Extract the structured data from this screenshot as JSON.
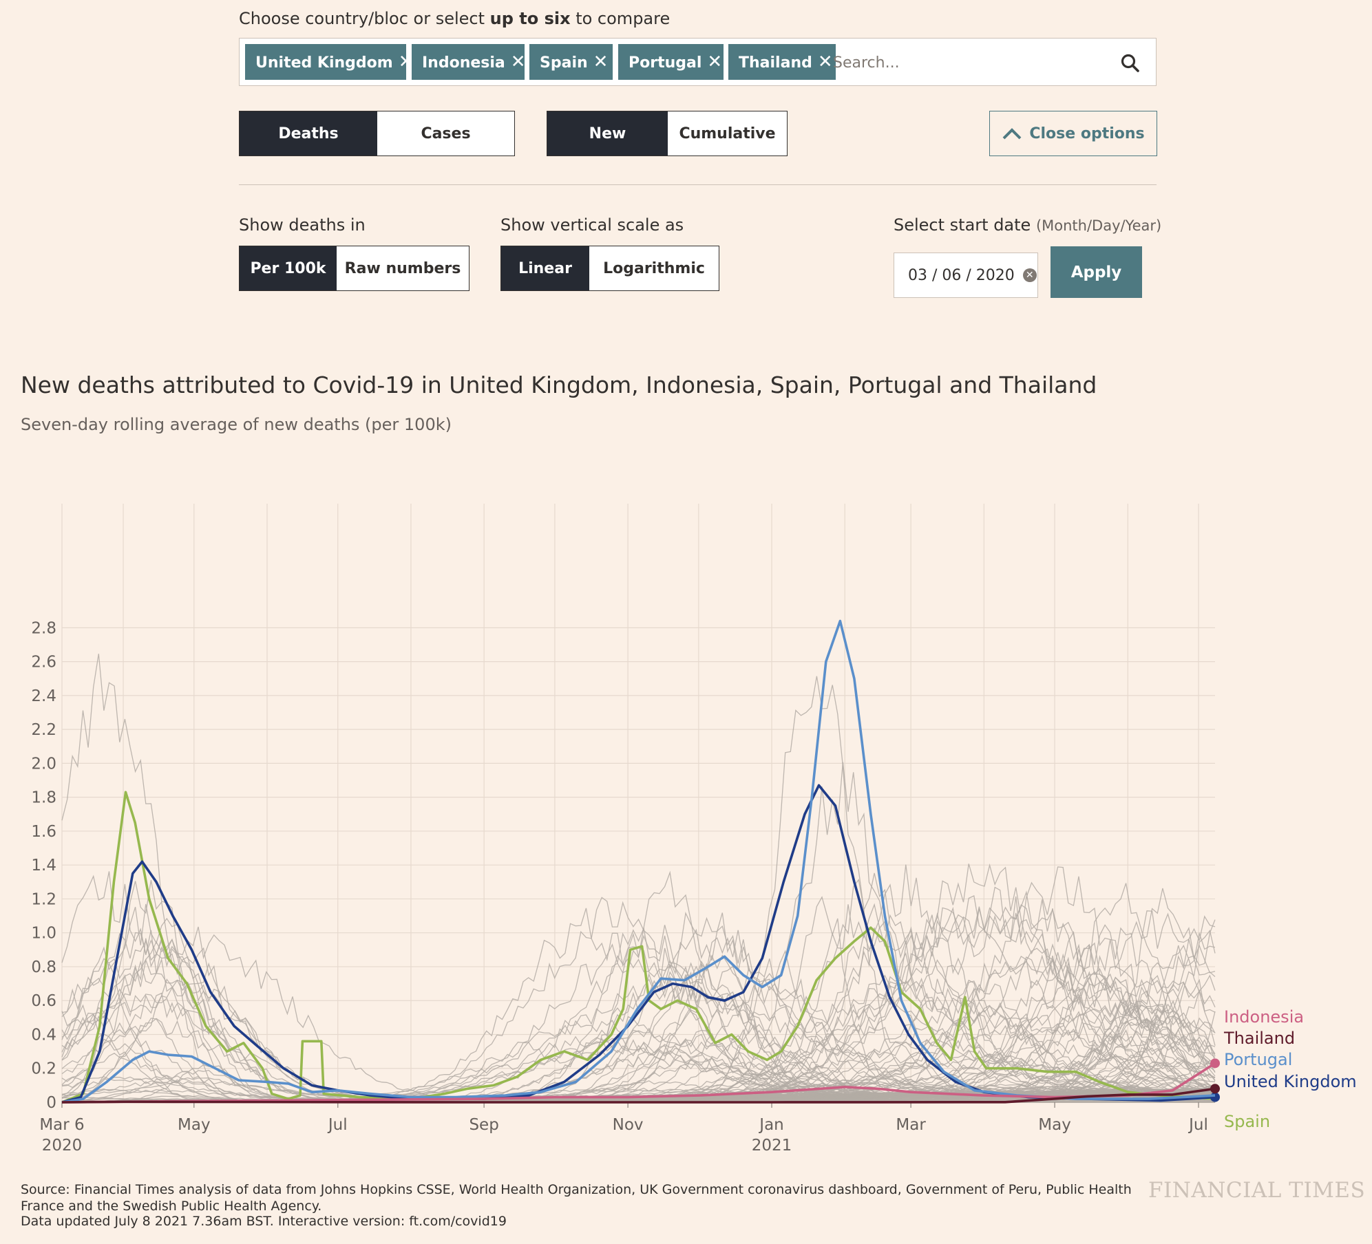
{
  "controls": {
    "prompt_pre": "Choose country/bloc or select ",
    "prompt_bold": "up to six",
    "prompt_post": " to compare",
    "tags": [
      "United Kingdom",
      "Indonesia",
      "Spain",
      "Portugal",
      "Thailand"
    ],
    "tag_remove_glyph": "✕",
    "search_placeholder": "Search...",
    "search_icon": "search-icon",
    "metric": {
      "deaths": "Deaths",
      "cases": "Cases",
      "selected": "Deaths"
    },
    "mode": {
      "new": "New",
      "cumulative": "Cumulative",
      "selected": "New"
    },
    "close_options": "Close options",
    "show_deaths_in": "Show deaths in",
    "per_100k": "Per 100k",
    "raw_numbers": "Raw numbers",
    "show_scale_as": "Show vertical scale as",
    "linear": "Linear",
    "logarithmic": "Logarithmic",
    "select_start_date": "Select start date",
    "date_format": "(Month/Day/Year)",
    "start_date": "03 / 06 / 2020",
    "apply": "Apply"
  },
  "chart_data": {
    "type": "line",
    "title": "New deaths attributed to Covid-19 in United Kingdom, Indonesia, Spain, Portugal and Thailand",
    "subtitle": "Seven-day rolling average of new deaths (per 100k)",
    "ylim": [
      0,
      2.9
    ],
    "yticks": [
      "0",
      "0.2",
      "0.4",
      "0.6",
      "0.8",
      "1.0",
      "1.2",
      "1.4",
      "1.6",
      "1.8",
      "2.0",
      "2.2",
      "2.4",
      "2.6",
      "2.8"
    ],
    "xrange": [
      "2020-03-06",
      "2021-07-08"
    ],
    "xticks": [
      {
        "date": "2020-03-06",
        "label": "Mar 6",
        "year": "2020"
      },
      {
        "date": "2020-05-01",
        "label": "May",
        "year": ""
      },
      {
        "date": "2020-07-01",
        "label": "Jul",
        "year": ""
      },
      {
        "date": "2020-09-01",
        "label": "Sep",
        "year": ""
      },
      {
        "date": "2020-11-01",
        "label": "Nov",
        "year": ""
      },
      {
        "date": "2021-01-01",
        "label": "Jan",
        "year": "2021"
      },
      {
        "date": "2021-03-01",
        "label": "Mar",
        "year": ""
      },
      {
        "date": "2021-05-01",
        "label": "May",
        "year": ""
      },
      {
        "date": "2021-07-01",
        "label": "Jul",
        "year": ""
      }
    ],
    "grid": true,
    "background_series_color": "#b3aba5",
    "series": [
      {
        "name": "Spain",
        "color": "#96b84e",
        "points": [
          [
            "2020-03-06",
            0
          ],
          [
            "2020-03-15",
            0.05
          ],
          [
            "2020-03-22",
            0.45
          ],
          [
            "2020-03-28",
            1.3
          ],
          [
            "2020-04-02",
            1.83
          ],
          [
            "2020-04-06",
            1.65
          ],
          [
            "2020-04-12",
            1.2
          ],
          [
            "2020-04-20",
            0.85
          ],
          [
            "2020-04-28",
            0.7
          ],
          [
            "2020-05-06",
            0.45
          ],
          [
            "2020-05-15",
            0.3
          ],
          [
            "2020-05-22",
            0.35
          ],
          [
            "2020-05-30",
            0.2
          ],
          [
            "2020-06-03",
            0.05
          ],
          [
            "2020-06-10",
            0.02
          ],
          [
            "2020-06-15",
            0.04
          ],
          [
            "2020-06-16",
            0.36
          ],
          [
            "2020-06-24",
            0.36
          ],
          [
            "2020-06-25",
            0.05
          ],
          [
            "2020-07-10",
            0.03
          ],
          [
            "2020-08-01",
            0.02
          ],
          [
            "2020-08-15",
            0.05
          ],
          [
            "2020-08-25",
            0.08
          ],
          [
            "2020-09-05",
            0.1
          ],
          [
            "2020-09-15",
            0.15
          ],
          [
            "2020-09-25",
            0.25
          ],
          [
            "2020-10-05",
            0.3
          ],
          [
            "2020-10-15",
            0.25
          ],
          [
            "2020-10-25",
            0.4
          ],
          [
            "2020-10-30",
            0.55
          ],
          [
            "2020-11-02",
            0.9
          ],
          [
            "2020-11-07",
            0.92
          ],
          [
            "2020-11-10",
            0.6
          ],
          [
            "2020-11-15",
            0.55
          ],
          [
            "2020-11-22",
            0.6
          ],
          [
            "2020-11-30",
            0.55
          ],
          [
            "2020-12-08",
            0.35
          ],
          [
            "2020-12-15",
            0.4
          ],
          [
            "2020-12-22",
            0.3
          ],
          [
            "2020-12-30",
            0.25
          ],
          [
            "2021-01-05",
            0.3
          ],
          [
            "2021-01-12",
            0.45
          ],
          [
            "2021-01-20",
            0.72
          ],
          [
            "2021-01-28",
            0.85
          ],
          [
            "2021-02-05",
            0.95
          ],
          [
            "2021-02-12",
            1.03
          ],
          [
            "2021-02-18",
            0.95
          ],
          [
            "2021-02-25",
            0.65
          ],
          [
            "2021-03-05",
            0.55
          ],
          [
            "2021-03-12",
            0.35
          ],
          [
            "2021-03-18",
            0.25
          ],
          [
            "2021-03-24",
            0.62
          ],
          [
            "2021-03-28",
            0.3
          ],
          [
            "2021-04-02",
            0.2
          ],
          [
            "2021-04-15",
            0.2
          ],
          [
            "2021-04-28",
            0.18
          ],
          [
            "2021-05-10",
            0.18
          ],
          [
            "2021-05-20",
            0.12
          ],
          [
            "2021-06-01",
            0.06
          ],
          [
            "2021-06-15",
            0.04
          ],
          [
            "2021-07-08",
            0.02
          ]
        ]
      },
      {
        "name": "United Kingdom",
        "color": "#1f3c88",
        "points": [
          [
            "2020-03-06",
            0
          ],
          [
            "2020-03-14",
            0.03
          ],
          [
            "2020-03-22",
            0.3
          ],
          [
            "2020-03-30",
            0.9
          ],
          [
            "2020-04-05",
            1.35
          ],
          [
            "2020-04-09",
            1.42
          ],
          [
            "2020-04-15",
            1.3
          ],
          [
            "2020-04-22",
            1.1
          ],
          [
            "2020-04-30",
            0.9
          ],
          [
            "2020-05-08",
            0.65
          ],
          [
            "2020-05-18",
            0.45
          ],
          [
            "2020-05-28",
            0.33
          ],
          [
            "2020-06-08",
            0.2
          ],
          [
            "2020-06-20",
            0.1
          ],
          [
            "2020-07-01",
            0.07
          ],
          [
            "2020-07-15",
            0.04
          ],
          [
            "2020-08-01",
            0.02
          ],
          [
            "2020-09-01",
            0.02
          ],
          [
            "2020-09-20",
            0.04
          ],
          [
            "2020-10-05",
            0.12
          ],
          [
            "2020-10-20",
            0.28
          ],
          [
            "2020-11-01",
            0.45
          ],
          [
            "2020-11-12",
            0.65
          ],
          [
            "2020-11-20",
            0.7
          ],
          [
            "2020-11-28",
            0.68
          ],
          [
            "2020-12-05",
            0.62
          ],
          [
            "2020-12-12",
            0.6
          ],
          [
            "2020-12-20",
            0.65
          ],
          [
            "2020-12-28",
            0.85
          ],
          [
            "2021-01-06",
            1.3
          ],
          [
            "2021-01-15",
            1.7
          ],
          [
            "2021-01-21",
            1.87
          ],
          [
            "2021-01-28",
            1.75
          ],
          [
            "2021-02-05",
            1.3
          ],
          [
            "2021-02-12",
            0.95
          ],
          [
            "2021-02-20",
            0.62
          ],
          [
            "2021-02-28",
            0.4
          ],
          [
            "2021-03-08",
            0.25
          ],
          [
            "2021-03-20",
            0.12
          ],
          [
            "2021-04-01",
            0.06
          ],
          [
            "2021-04-20",
            0.03
          ],
          [
            "2021-05-15",
            0.02
          ],
          [
            "2021-06-15",
            0.01
          ],
          [
            "2021-07-08",
            0.03
          ]
        ]
      },
      {
        "name": "Portugal",
        "color": "#5a8fcb",
        "points": [
          [
            "2020-03-06",
            0
          ],
          [
            "2020-03-15",
            0.02
          ],
          [
            "2020-03-25",
            0.12
          ],
          [
            "2020-04-05",
            0.25
          ],
          [
            "2020-04-12",
            0.3
          ],
          [
            "2020-04-20",
            0.28
          ],
          [
            "2020-04-30",
            0.27
          ],
          [
            "2020-05-10",
            0.2
          ],
          [
            "2020-05-20",
            0.13
          ],
          [
            "2020-06-01",
            0.12
          ],
          [
            "2020-06-10",
            0.11
          ],
          [
            "2020-06-20",
            0.06
          ],
          [
            "2020-07-01",
            0.07
          ],
          [
            "2020-07-15",
            0.05
          ],
          [
            "2020-08-01",
            0.03
          ],
          [
            "2020-08-20",
            0.03
          ],
          [
            "2020-09-10",
            0.04
          ],
          [
            "2020-09-25",
            0.06
          ],
          [
            "2020-10-10",
            0.12
          ],
          [
            "2020-10-25",
            0.3
          ],
          [
            "2020-11-05",
            0.55
          ],
          [
            "2020-11-15",
            0.73
          ],
          [
            "2020-11-25",
            0.72
          ],
          [
            "2020-12-05",
            0.8
          ],
          [
            "2020-12-12",
            0.86
          ],
          [
            "2020-12-20",
            0.75
          ],
          [
            "2020-12-28",
            0.68
          ],
          [
            "2021-01-05",
            0.75
          ],
          [
            "2021-01-12",
            1.1
          ],
          [
            "2021-01-18",
            1.8
          ],
          [
            "2021-01-24",
            2.6
          ],
          [
            "2021-01-30",
            2.84
          ],
          [
            "2021-02-05",
            2.5
          ],
          [
            "2021-02-12",
            1.7
          ],
          [
            "2021-02-18",
            1.1
          ],
          [
            "2021-02-25",
            0.6
          ],
          [
            "2021-03-05",
            0.35
          ],
          [
            "2021-03-15",
            0.18
          ],
          [
            "2021-03-28",
            0.07
          ],
          [
            "2021-04-15",
            0.04
          ],
          [
            "2021-05-10",
            0.02
          ],
          [
            "2021-06-10",
            0.02
          ],
          [
            "2021-07-08",
            0.04
          ]
        ]
      },
      {
        "name": "Indonesia",
        "color": "#cc5f83",
        "points": [
          [
            "2020-03-06",
            0
          ],
          [
            "2020-04-15",
            0.005
          ],
          [
            "2020-06-01",
            0.01
          ],
          [
            "2020-07-15",
            0.015
          ],
          [
            "2020-09-01",
            0.02
          ],
          [
            "2020-10-01",
            0.03
          ],
          [
            "2020-11-01",
            0.03
          ],
          [
            "2020-12-01",
            0.04
          ],
          [
            "2021-01-01",
            0.06
          ],
          [
            "2021-02-01",
            0.09
          ],
          [
            "2021-02-15",
            0.08
          ],
          [
            "2021-03-01",
            0.06
          ],
          [
            "2021-04-01",
            0.04
          ],
          [
            "2021-05-01",
            0.03
          ],
          [
            "2021-06-01",
            0.04
          ],
          [
            "2021-06-20",
            0.07
          ],
          [
            "2021-07-08",
            0.23
          ]
        ]
      },
      {
        "name": "Thailand",
        "color": "#5e1a2a",
        "points": [
          [
            "2020-03-06",
            0
          ],
          [
            "2020-04-01",
            0.003
          ],
          [
            "2020-05-01",
            0.002
          ],
          [
            "2020-09-01",
            0
          ],
          [
            "2021-01-01",
            0
          ],
          [
            "2021-04-10",
            0.001
          ],
          [
            "2021-04-25",
            0.015
          ],
          [
            "2021-05-15",
            0.035
          ],
          [
            "2021-06-01",
            0.045
          ],
          [
            "2021-06-20",
            0.045
          ],
          [
            "2021-07-08",
            0.08
          ]
        ]
      }
    ],
    "labels_order": [
      "Indonesia",
      "Thailand",
      "Portugal",
      "United Kingdom",
      "Spain"
    ]
  },
  "footer": {
    "source": "Source: Financial Times analysis of data from Johns Hopkins CSSE, World Health Organization, UK Government coronavirus dashboard, Government of Peru, Public Health France and the Swedish Public Health Agency.",
    "updated": "Data updated July 8 2021 7.36am BST. Interactive version: ft.com/covid19",
    "logo": "FINANCIAL TIMES"
  }
}
